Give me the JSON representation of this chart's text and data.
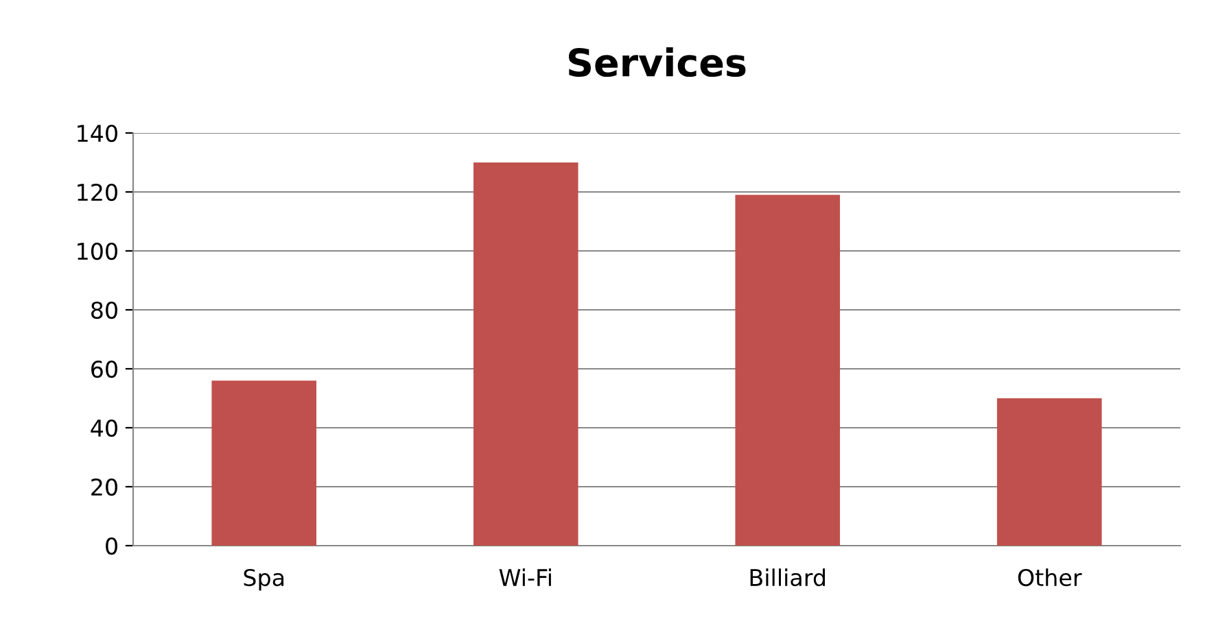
{
  "chart_data": {
    "type": "bar",
    "title": "Services",
    "categories": [
      "Spa",
      "Wi-Fi",
      "Billiard",
      "Other"
    ],
    "values": [
      56,
      130,
      119,
      50
    ],
    "color": "#c0504d",
    "ylim": [
      0,
      140
    ],
    "yticks": [
      0,
      20,
      40,
      60,
      80,
      100,
      120,
      140
    ],
    "grid": "y",
    "legend": false
  }
}
